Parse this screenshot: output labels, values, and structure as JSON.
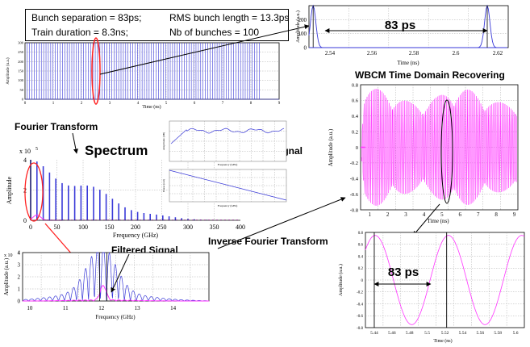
{
  "infobox": {
    "bunch_separation": "Bunch separation = 83ps;",
    "rms_bunch_length": "RMS bunch length = 13.3ps",
    "train_duration": "Train duration = 8.3ns;",
    "nb_bunches": "Nb of bunches = 100"
  },
  "labels": {
    "fourier_transform": "Fourier Transform",
    "spectrum": "Spectrum",
    "wbcm_signal": "WBCM Signal",
    "filtered_signal": "Filtered Signal",
    "inverse_fourier": "Inverse Fourier Transform",
    "wbcm_time_domain": "WBCM Time Domain Recovering",
    "spacing_top": "83 ps",
    "spacing_bottom": "83 ps"
  },
  "colors": {
    "blue_trace": "#3a3ad8",
    "magenta_trace": "#ff33ff",
    "red_marker": "#ff2020"
  },
  "chart_data": [
    {
      "id": "bunch-train",
      "type": "line",
      "xlabel": "Time (ns)",
      "ylabel": "Amplitude (u.a.)",
      "xlim": [
        0,
        9
      ],
      "ylim": [
        0,
        300
      ],
      "xticks": [
        "0",
        "1",
        "2",
        "3",
        "4",
        "5",
        "6",
        "7",
        "8",
        "9"
      ],
      "yticks": [
        "0",
        "50",
        "100",
        "150",
        "200",
        "250",
        "300"
      ],
      "series": [
        {
          "peak_spacing_ns": 0.083,
          "peak_amplitude": 300,
          "n_peaks": 100
        }
      ]
    },
    {
      "id": "zoom-two-bunches",
      "type": "line",
      "xlabel": "Time (ns)",
      "ylabel": "Amplitude (a.u.)",
      "xlim": [
        2.53,
        2.625
      ],
      "ylim": [
        0,
        300
      ],
      "xticks": [
        "2.54",
        "2.56",
        "2.58",
        "2.6",
        "2.62"
      ],
      "yticks": [
        "0",
        "100",
        "200"
      ],
      "series": [
        {
          "peaks_ns": [
            2.532,
            2.615
          ],
          "peak_amplitude": 300
        }
      ]
    },
    {
      "id": "spectrum",
      "type": "bar",
      "xlabel": "Frequency (GHz)",
      "ylabel": "Amplitude",
      "xlim": [
        0,
        400
      ],
      "ylim": [
        0,
        4
      ],
      "y_exponent": "x 10",
      "y_exponent_power": "5",
      "xticks": [
        "0",
        "50",
        "100",
        "150",
        "200",
        "250",
        "300",
        "350",
        "400"
      ],
      "yticks": [
        "0",
        "2",
        "4"
      ],
      "series": [
        {
          "harmonic_spacing_ghz": 12,
          "dc_amplitude": 4,
          "decay": "gaussian"
        }
      ]
    },
    {
      "id": "wbcm-amplitude",
      "type": "line",
      "xlabel": "Frequency (GHz)",
      "ylabel": "Amplitude (dB)",
      "xlim": [
        0,
        20
      ],
      "ylim": [
        -20,
        0
      ]
    },
    {
      "id": "wbcm-phase",
      "type": "line",
      "xlabel": "Frequency (GHz)",
      "ylabel": "Phase (rad)",
      "xlim": [
        0,
        20
      ],
      "ylim": [
        -100,
        0
      ]
    },
    {
      "id": "filtered",
      "type": "line",
      "xlabel": "Frequency (GHz)",
      "ylabel": "Amplitude (a.u.)",
      "xlim": [
        9.8,
        15
      ],
      "ylim": [
        0,
        4
      ],
      "y_exponent": "x 10",
      "y_exponent_power": "4",
      "xticks": [
        "10",
        "11",
        "12",
        "13",
        "14"
      ],
      "yticks": [
        "0",
        "1",
        "2",
        "3",
        "4"
      ],
      "series": [
        {
          "name": "",
          "center_ghz": 12,
          "peak": 4,
          "color": "blue"
        },
        {
          "name": "",
          "center_ghz": 12.05,
          "peak": 1.2,
          "color": "magenta"
        }
      ]
    },
    {
      "id": "time-domain-recovered",
      "type": "line",
      "xlabel": "Time (ns)",
      "ylabel": "Amplitude (a.u.)",
      "xlim": [
        0.5,
        9.2
      ],
      "ylim": [
        -0.8,
        0.8
      ],
      "xticks": [
        "1",
        "2",
        "3",
        "4",
        "5",
        "6",
        "7",
        "8",
        "9"
      ],
      "yticks": [
        "0.8",
        "0.6",
        "0.4",
        "0.2",
        "0",
        "-0.2",
        "-0.4",
        "-0.6",
        "-0.8"
      ],
      "series": [
        {
          "envelope_amplitude": 0.75,
          "color": "magenta"
        }
      ]
    },
    {
      "id": "zoom-sine",
      "type": "line",
      "xlabel": "Time (ns)",
      "ylabel": "Amplitude (a.u.)",
      "xlim": [
        5.43,
        5.61
      ],
      "ylim": [
        -0.8,
        0.8
      ],
      "xticks": [
        "5.44",
        "5.46",
        "5.48",
        "5.5",
        "5.52",
        "5.54",
        "5.56",
        "5.58",
        "5.6"
      ],
      "yticks": [
        "0.8",
        "0.6",
        "0.4",
        "0.2",
        "0",
        "-0.2",
        "-0.4",
        "-0.6",
        "-0.8"
      ],
      "series": [
        {
          "period_ns": 0.083,
          "amplitude": 0.75,
          "color": "magenta",
          "markers_ns": [
            5.44,
            5.522
          ]
        }
      ]
    }
  ]
}
